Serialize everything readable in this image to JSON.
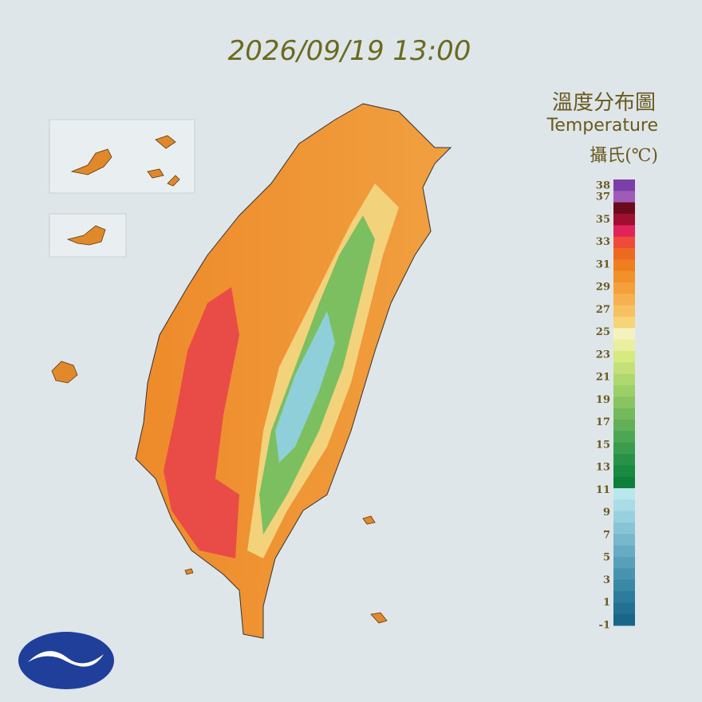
{
  "timestamp": "2026/09/19 13:00",
  "legend": {
    "title": "溫度分布圖",
    "subtitle": "Temperature",
    "unit": "攝氏(℃)",
    "ticks": [
      38,
      37,
      35,
      33,
      31,
      29,
      27,
      25,
      23,
      21,
      19,
      17,
      15,
      13,
      11,
      9,
      7,
      5,
      3,
      1,
      -1
    ],
    "colors": [
      "#7b3fa8",
      "#9e5cb8",
      "#6b0a1a",
      "#a0102e",
      "#e0245a",
      "#f04a3a",
      "#ec6a20",
      "#ef7f1e",
      "#f2912a",
      "#f4a03a",
      "#f6b050",
      "#f7c060",
      "#f8d478",
      "#f5f2c0",
      "#e8f0a0",
      "#d6ea80",
      "#c4e078",
      "#b0d870",
      "#9ccf68",
      "#88c462",
      "#74ba5c",
      "#60b058",
      "#4ca652",
      "#3a9c4c",
      "#289246",
      "#1a8a40",
      "#0f803c",
      "#b8e8ee",
      "#a8dce6",
      "#98d0de",
      "#88c4d6",
      "#78b8ce",
      "#68acc4",
      "#58a0ba",
      "#4894b0",
      "#3888a6",
      "#2c7c9c",
      "#227092",
      "#1a6688"
    ]
  }
}
